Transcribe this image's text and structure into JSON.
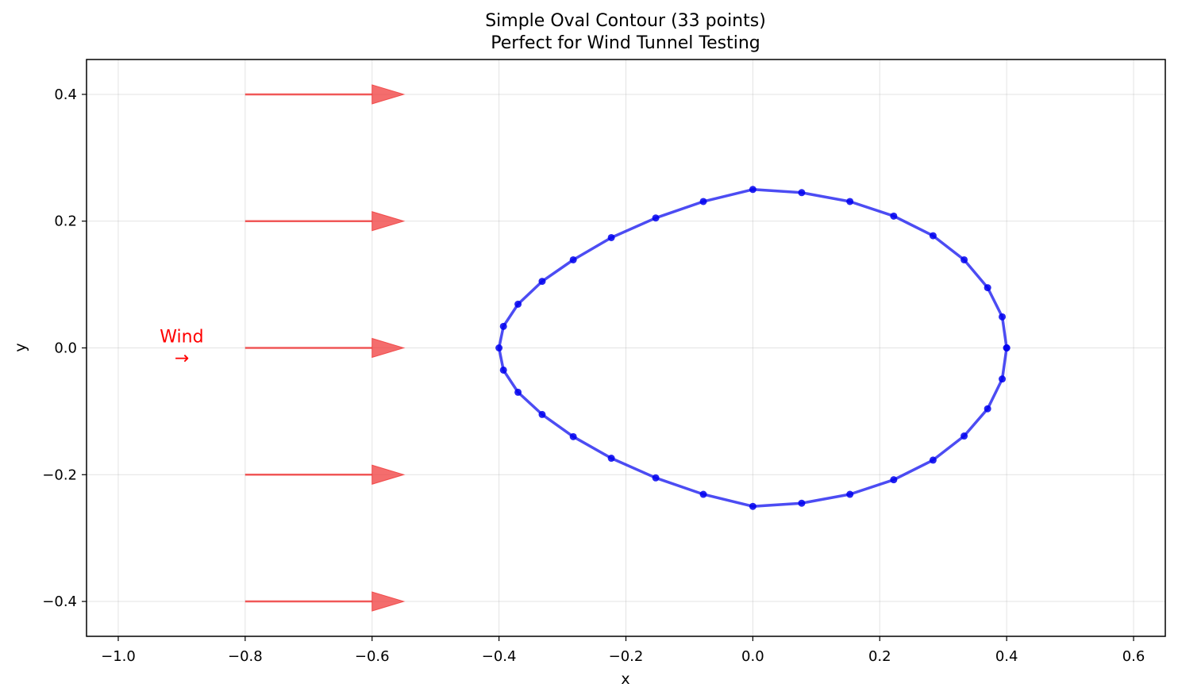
{
  "chart_data": {
    "type": "line",
    "title_line1": "Simple Oval Contour (33 points)",
    "title_line2": "Perfect for Wind Tunnel Testing",
    "xlabel": "x",
    "ylabel": "y",
    "xlim": [
      -1.05,
      0.65
    ],
    "ylim": [
      -0.455,
      0.455
    ],
    "grid": true,
    "xticks": [
      -1.0,
      -0.8,
      -0.6,
      -0.4,
      -0.2,
      0.0,
      0.2,
      0.4,
      0.6
    ],
    "xtick_labels": [
      "−1.0",
      "−0.8",
      "−0.6",
      "−0.4",
      "−0.2",
      "0.0",
      "0.2",
      "0.4",
      "0.6"
    ],
    "yticks": [
      -0.4,
      -0.2,
      0.0,
      0.2,
      0.4
    ],
    "ytick_labels": [
      "−0.4",
      "−0.2",
      "0.0",
      "0.2",
      "0.4"
    ],
    "colors": {
      "contour": "#0000ee",
      "arrow": "#f03c3c",
      "annotation": "#ff0000"
    },
    "series": [
      {
        "x": [
          0.4,
          0.393,
          0.37,
          0.333,
          0.284,
          0.222,
          0.153,
          0.077,
          0.0,
          -0.078,
          -0.153,
          -0.223,
          -0.283,
          -0.332,
          -0.37,
          -0.393,
          -0.4,
          -0.393,
          -0.37,
          -0.332,
          -0.283,
          -0.223,
          -0.153,
          -0.078,
          0.0,
          0.077,
          0.153,
          0.222,
          0.284,
          0.333,
          0.37,
          0.393,
          0.4
        ],
        "y": [
          0.0,
          0.049,
          0.095,
          0.139,
          0.177,
          0.208,
          0.231,
          0.245,
          0.25,
          0.231,
          0.205,
          0.174,
          0.139,
          0.105,
          0.069,
          0.034,
          0.0,
          -0.035,
          -0.07,
          -0.105,
          -0.14,
          -0.174,
          -0.205,
          -0.231,
          -0.25,
          -0.245,
          -0.231,
          -0.208,
          -0.177,
          -0.139,
          -0.096,
          -0.049,
          0.0
        ]
      }
    ],
    "wind_arrows": {
      "x_start": -0.8,
      "x_end": -0.55,
      "y": [
        0.4,
        0.2,
        0.0,
        -0.2,
        -0.4
      ]
    },
    "annotation": {
      "text": "Wind",
      "arrow_text": "→",
      "x": -0.9,
      "y": 0.0
    }
  }
}
